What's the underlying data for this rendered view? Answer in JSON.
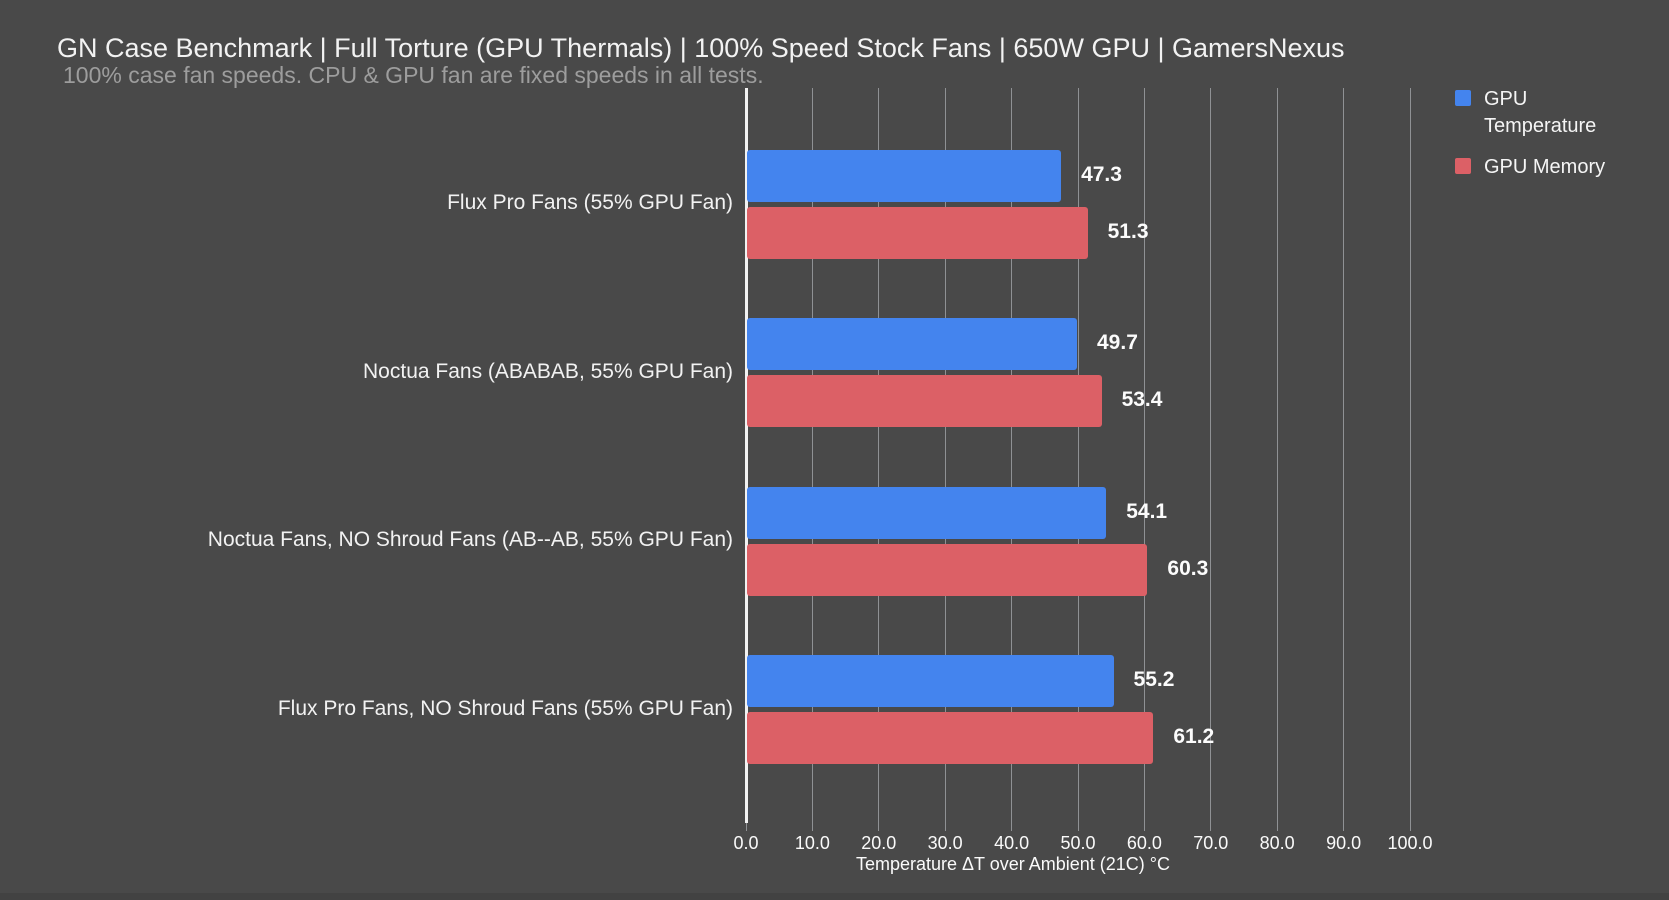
{
  "chart_data": {
    "type": "bar",
    "orientation": "horizontal",
    "title": "GN Case Benchmark | Full Torture (GPU Thermals) | 100% Speed Stock Fans | 650W GPU | GamersNexus",
    "subtitle": "100% case fan speeds. CPU & GPU fan are fixed speeds in all tests.",
    "categories": [
      "Flux Pro Fans (55% GPU Fan)",
      "Noctua Fans (ABABAB, 55% GPU Fan)",
      "Noctua Fans, NO Shroud Fans (AB--AB, 55% GPU Fan)",
      "Flux Pro Fans, NO Shroud Fans (55% GPU Fan)"
    ],
    "series": [
      {
        "name": "GPU Temperature",
        "color": "#4484ee",
        "values": [
          47.3,
          49.7,
          54.1,
          55.2
        ]
      },
      {
        "name": "GPU Memory",
        "color": "#dc6066",
        "values": [
          51.3,
          53.4,
          60.3,
          61.2
        ]
      }
    ],
    "xlabel": "Temperature ΔT over Ambient (21C) °C",
    "xlim": [
      0,
      100
    ],
    "xtick_step": 10,
    "xticks": [
      "0.0",
      "10.0",
      "20.0",
      "30.0",
      "40.0",
      "50.0",
      "60.0",
      "70.0",
      "80.0",
      "90.0",
      "100.0"
    ],
    "grid": true,
    "legend_position": "right",
    "value_labels": "outside-end, one decimal",
    "colors": {
      "background": "#494949",
      "grid": "#8f9194",
      "zero_axis": "#f2f2f2",
      "title_text": "#f2f2f2",
      "subtitle_text": "#9d9d9d",
      "label_text": "#f5f5f5"
    }
  }
}
